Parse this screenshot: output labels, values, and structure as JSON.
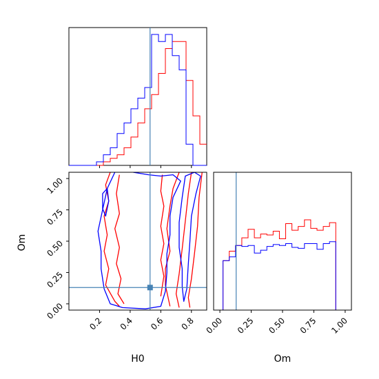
{
  "chart_data": {
    "type": "corner",
    "parameters": [
      "H0",
      "Om"
    ],
    "xlabel_h0": "H0",
    "xlabel_om": "Om",
    "ylabel_om": "Om",
    "truth": {
      "H0": 0.53,
      "Om": 0.13
    },
    "colors": {
      "red": "#ff0000",
      "blue": "#0000ff",
      "truth": "#4682b4"
    },
    "ranges": {
      "H0": [
        0.0,
        0.9
      ],
      "Om": [
        -0.05,
        1.05
      ]
    },
    "ticks": {
      "H0": [
        0.2,
        0.4,
        0.6,
        0.8
      ],
      "H0_labels": [
        "0.2",
        "0.4",
        "0.6",
        "0.8"
      ],
      "Om_x": [
        0.0,
        0.25,
        0.5,
        0.75,
        1.0
      ],
      "Om_x_labels": [
        "0.00",
        "0.25",
        "0.50",
        "0.75",
        "1.00"
      ],
      "Om_y": [
        0.0,
        0.25,
        0.5,
        0.75,
        1.0
      ],
      "Om_y_labels": [
        "0.00",
        "0.25",
        "0.50",
        "0.75",
        "1.00"
      ]
    },
    "hist_H0": {
      "bin_edges": [
        0.0,
        0.045,
        0.09,
        0.135,
        0.18,
        0.225,
        0.27,
        0.315,
        0.36,
        0.405,
        0.45,
        0.495,
        0.54,
        0.585,
        0.63,
        0.675,
        0.72,
        0.765,
        0.81,
        0.855,
        0.9
      ],
      "red": [
        0,
        0,
        0,
        0,
        0,
        1,
        2,
        3,
        5,
        8,
        12,
        16,
        20,
        26,
        33,
        35,
        35,
        24,
        14,
        6
      ],
      "blue": [
        0,
        0,
        0,
        0,
        1,
        3,
        5,
        9,
        12,
        16,
        19,
        22,
        37,
        35,
        37,
        31,
        27,
        6,
        0,
        0
      ]
    },
    "hist_Om": {
      "bin_edges": [
        -0.05,
        0.025,
        0.075,
        0.125,
        0.175,
        0.225,
        0.275,
        0.325,
        0.375,
        0.425,
        0.475,
        0.525,
        0.575,
        0.625,
        0.675,
        0.725,
        0.775,
        0.825,
        0.875,
        0.925,
        0.975,
        1.05
      ],
      "red": [
        0,
        52,
        62,
        68,
        76,
        85,
        76,
        80,
        79,
        83,
        75,
        91,
        84,
        88,
        95,
        86,
        84,
        88,
        92,
        0,
        0
      ],
      "blue": [
        0,
        52,
        56,
        68,
        67,
        68,
        60,
        63,
        67,
        69,
        68,
        70,
        66,
        65,
        70,
        70,
        64,
        70,
        72,
        0,
        0
      ]
    },
    "contours": {
      "red": [
        [
          [
            0.27,
            1.05
          ],
          [
            0.24,
            0.95
          ],
          [
            0.26,
            0.82
          ],
          [
            0.23,
            0.7
          ],
          [
            0.25,
            0.55
          ],
          [
            0.23,
            0.42
          ],
          [
            0.26,
            0.28
          ],
          [
            0.24,
            0.15
          ],
          [
            0.3,
            0.02
          ],
          [
            0.33,
            -0.02
          ]
        ],
        [
          [
            0.33,
            1.03
          ],
          [
            0.31,
            0.88
          ],
          [
            0.33,
            0.72
          ],
          [
            0.3,
            0.6
          ],
          [
            0.33,
            0.45
          ],
          [
            0.31,
            0.32
          ],
          [
            0.34,
            0.2
          ],
          [
            0.32,
            0.08
          ],
          [
            0.36,
            0.0
          ]
        ],
        [
          [
            0.61,
            1.03
          ],
          [
            0.6,
            0.9
          ],
          [
            0.62,
            0.78
          ],
          [
            0.6,
            0.62
          ],
          [
            0.62,
            0.48
          ],
          [
            0.6,
            0.35
          ],
          [
            0.62,
            0.22
          ],
          [
            0.6,
            0.06
          ]
        ],
        [
          [
            0.72,
            1.05
          ],
          [
            0.68,
            0.92
          ],
          [
            0.66,
            0.78
          ],
          [
            0.64,
            0.6
          ],
          [
            0.66,
            0.42
          ],
          [
            0.63,
            0.28
          ],
          [
            0.63,
            0.15
          ],
          [
            0.66,
            -0.02
          ]
        ],
        [
          [
            0.8,
            1.05
          ],
          [
            0.78,
            0.88
          ],
          [
            0.76,
            0.66
          ],
          [
            0.74,
            0.44
          ],
          [
            0.72,
            0.24
          ],
          [
            0.7,
            0.08
          ],
          [
            0.72,
            -0.03
          ]
        ],
        [
          [
            0.87,
            1.05
          ],
          [
            0.85,
            0.85
          ],
          [
            0.84,
            0.62
          ],
          [
            0.82,
            0.4
          ],
          [
            0.8,
            0.2
          ],
          [
            0.78,
            0.05
          ],
          [
            0.79,
            -0.03
          ]
        ]
      ],
      "blue": [
        [
          [
            0.3,
            1.05
          ],
          [
            0.25,
            0.92
          ],
          [
            0.22,
            0.75
          ],
          [
            0.19,
            0.58
          ],
          [
            0.21,
            0.42
          ],
          [
            0.21,
            0.28
          ],
          [
            0.23,
            0.12
          ],
          [
            0.27,
            0.0
          ],
          [
            0.35,
            -0.03
          ],
          [
            0.5,
            -0.04
          ],
          [
            0.6,
            -0.02
          ],
          [
            0.63,
            0.1
          ],
          [
            0.64,
            0.25
          ],
          [
            0.64,
            0.4
          ],
          [
            0.66,
            0.55
          ],
          [
            0.66,
            0.7
          ],
          [
            0.68,
            0.85
          ],
          [
            0.73,
            0.98
          ],
          [
            0.68,
            1.03
          ],
          [
            0.6,
            1.02
          ],
          [
            0.52,
            1.03
          ],
          [
            0.42,
            1.05
          ]
        ],
        [
          [
            0.22,
            0.88
          ],
          [
            0.25,
            0.92
          ],
          [
            0.26,
            0.82
          ],
          [
            0.24,
            0.7
          ],
          [
            0.22,
            0.76
          ],
          [
            0.22,
            0.88
          ]
        ],
        [
          [
            0.74,
            0.28
          ],
          [
            0.72,
            0.45
          ],
          [
            0.72,
            0.65
          ],
          [
            0.74,
            0.85
          ],
          [
            0.76,
            1.02
          ],
          [
            0.82,
            1.05
          ],
          [
            0.86,
            1.02
          ],
          [
            0.83,
            0.88
          ],
          [
            0.8,
            0.7
          ],
          [
            0.79,
            0.5
          ],
          [
            0.78,
            0.32
          ],
          [
            0.77,
            0.12
          ],
          [
            0.75,
            0.02
          ],
          [
            0.74,
            0.14
          ],
          [
            0.74,
            0.28
          ]
        ]
      ]
    }
  }
}
